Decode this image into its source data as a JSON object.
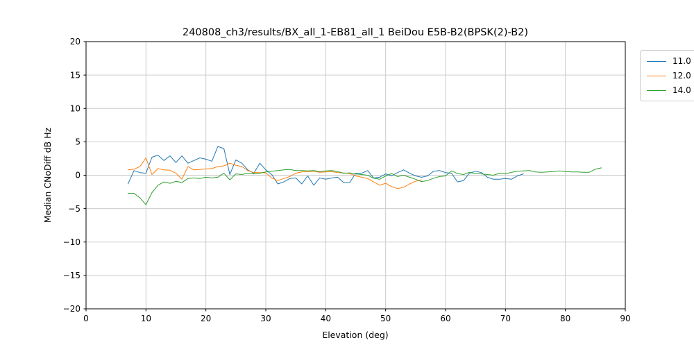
{
  "figure": {
    "title": "240808_ch3/results/BX_all_1-EB81_all_1 BeiDou E5B-B2(BPSK(2)-B2)",
    "xlabel": "Elevation (deg)",
    "ylabel": "Median CNoDiff dB Hz",
    "background_color": "#ffffff",
    "grid_color": "#cccccc",
    "spine_color": "#000000"
  },
  "legend": {
    "entries": [
      {
        "label": "11.0",
        "color": "#1f77b4"
      },
      {
        "label": "12.0",
        "color": "#ff7f0e"
      },
      {
        "label": "14.0",
        "color": "#2ca02c"
      }
    ]
  },
  "chart_data": {
    "type": "line",
    "title": "240808_ch3/results/BX_all_1-EB81_all_1 BeiDou E5B-B2(BPSK(2)-B2)",
    "xlabel": "Elevation (deg)",
    "ylabel": "Median CNoDiff dB Hz",
    "xlim": [
      0,
      90
    ],
    "ylim": [
      -20,
      20
    ],
    "xticks": [
      0,
      10,
      20,
      30,
      40,
      50,
      60,
      70,
      80,
      90
    ],
    "yticks": [
      -20,
      -15,
      -10,
      -5,
      0,
      5,
      10,
      15,
      20
    ],
    "grid": true,
    "legend_position": "upper right outside, clipped at figure edge",
    "series": [
      {
        "name": "11.0",
        "color": "#1f77b4",
        "x": [
          7,
          8,
          9,
          10,
          11,
          12,
          13,
          14,
          15,
          16,
          17,
          18,
          19,
          20,
          21,
          22,
          23,
          24,
          25,
          26,
          27,
          28,
          29,
          30,
          31,
          32,
          33,
          34,
          35,
          36,
          37,
          38,
          39,
          40,
          41,
          42,
          43,
          44,
          45,
          46,
          47,
          48,
          49,
          50,
          51,
          52,
          53,
          54,
          55,
          56,
          57,
          58,
          59,
          60,
          61,
          62,
          63,
          64,
          65,
          66,
          67,
          68,
          69,
          70,
          71,
          72,
          73
        ],
        "y": [
          -1.3,
          0.7,
          0.4,
          0.3,
          2.7,
          3.0,
          2.2,
          2.9,
          1.9,
          2.9,
          1.8,
          2.2,
          2.6,
          2.4,
          2.1,
          4.3,
          4.0,
          0.1,
          2.3,
          1.8,
          0.8,
          0.3,
          1.8,
          0.8,
          0.1,
          -1.3,
          -1.0,
          -0.5,
          -0.4,
          -1.3,
          -0.1,
          -1.5,
          -0.4,
          -0.6,
          -0.4,
          -0.3,
          -1.1,
          -1.1,
          0.3,
          0.3,
          0.7,
          -0.4,
          -0.3,
          0.2,
          -0.1,
          0.4,
          0.8,
          0.3,
          -0.1,
          -0.3,
          -0.1,
          0.6,
          0.7,
          0.4,
          0.3,
          -1.0,
          -0.8,
          0.3,
          0.6,
          0.4,
          -0.3,
          -0.6,
          -0.6,
          -0.5,
          -0.6,
          -0.1,
          0.2
        ]
      },
      {
        "name": "12.0",
        "color": "#ff7f0e",
        "x": [
          7,
          8,
          9,
          10,
          11,
          12,
          13,
          14,
          15,
          16,
          17,
          18,
          19,
          20,
          21,
          22,
          23,
          24,
          25,
          26,
          27,
          28,
          29,
          30,
          31,
          32,
          33,
          34,
          35,
          36,
          37,
          38,
          39,
          40,
          41,
          42,
          43,
          44,
          45,
          46,
          47,
          48,
          49,
          50,
          51,
          52,
          53,
          54,
          55,
          56
        ],
        "y": [
          0.8,
          0.9,
          1.3,
          2.6,
          0.1,
          1.0,
          0.8,
          0.75,
          0.3,
          -0.6,
          1.3,
          0.8,
          0.85,
          0.95,
          1.0,
          1.3,
          1.4,
          1.8,
          1.5,
          1.3,
          0.7,
          0.4,
          0.4,
          0.35,
          -0.4,
          -0.8,
          -0.5,
          -0.2,
          0.3,
          0.5,
          0.55,
          0.6,
          0.45,
          0.5,
          0.55,
          0.4,
          0.35,
          0.25,
          -0.1,
          -0.3,
          -0.5,
          -1.0,
          -1.5,
          -1.2,
          -1.7,
          -2.0,
          -1.8,
          -1.3,
          -0.9,
          -0.7
        ]
      },
      {
        "name": "14.0",
        "color": "#2ca02c",
        "x": [
          7,
          8,
          9,
          10,
          11,
          12,
          13,
          14,
          15,
          16,
          17,
          18,
          19,
          20,
          21,
          22,
          23,
          24,
          25,
          26,
          27,
          28,
          29,
          30,
          31,
          32,
          33,
          34,
          35,
          36,
          37,
          38,
          39,
          40,
          41,
          42,
          43,
          44,
          45,
          46,
          47,
          48,
          49,
          50,
          51,
          52,
          53,
          54,
          55,
          56,
          57,
          58,
          59,
          60,
          61,
          62,
          63,
          64,
          65,
          66,
          67,
          68,
          69,
          70,
          71,
          72,
          73,
          74,
          75,
          76,
          77,
          78,
          79,
          80,
          81,
          82,
          83,
          84,
          85,
          86
        ],
        "y": [
          -2.7,
          -2.7,
          -3.4,
          -4.4,
          -2.6,
          -1.5,
          -1.0,
          -1.2,
          -0.9,
          -1.1,
          -0.5,
          -0.4,
          -0.5,
          -0.3,
          -0.4,
          -0.3,
          0.3,
          -0.7,
          0.2,
          0.1,
          0.3,
          0.2,
          0.3,
          0.5,
          0.6,
          0.7,
          0.8,
          0.85,
          0.7,
          0.7,
          0.65,
          0.7,
          0.55,
          0.65,
          0.7,
          0.55,
          0.3,
          0.35,
          0.2,
          0.1,
          0.0,
          -0.45,
          -0.6,
          -0.1,
          0.25,
          -0.2,
          0.0,
          -0.3,
          -0.6,
          -0.95,
          -0.8,
          -0.45,
          -0.2,
          -0.1,
          0.65,
          0.25,
          0.1,
          0.45,
          0.25,
          0.2,
          0.1,
          0.0,
          0.3,
          0.2,
          0.45,
          0.6,
          0.65,
          0.7,
          0.5,
          0.45,
          0.5,
          0.55,
          0.65,
          0.55,
          0.5,
          0.5,
          0.45,
          0.45,
          0.9,
          1.1
        ]
      }
    ]
  }
}
